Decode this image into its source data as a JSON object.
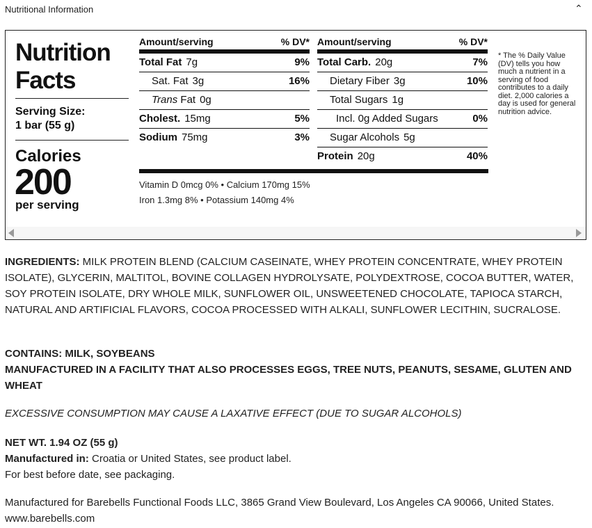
{
  "header": {
    "title": "Nutritional Information",
    "collapse_icon": "chevron-up-icon"
  },
  "label": {
    "title_line1": "Nutrition",
    "title_line2": "Facts",
    "serving_label": "Serving Size:",
    "serving_value": "1 bar (55 g)",
    "calories_label": "Calories",
    "calories_value": "200",
    "per_serving": "per serving",
    "col_header_amount": "Amount/serving",
    "col_header_dv": "% DV*",
    "left_rows": [
      {
        "name": "Total Fat",
        "amount": "7g",
        "dv": "9%",
        "bold": true,
        "indent": 0
      },
      {
        "name": "Sat. Fat",
        "amount": "3g",
        "dv": "16%",
        "bold": false,
        "indent": 1
      },
      {
        "name": "Trans",
        "name_suffix": " Fat",
        "amount": "0g",
        "dv": "",
        "bold": false,
        "indent": 1,
        "italic": true
      },
      {
        "name": "Cholest.",
        "amount": "15mg",
        "dv": "5%",
        "bold": true,
        "indent": 0
      },
      {
        "name": "Sodium",
        "amount": "75mg",
        "dv": "3%",
        "bold": true,
        "indent": 0
      }
    ],
    "right_rows": [
      {
        "name": "Total Carb.",
        "amount": "20g",
        "dv": "7%",
        "bold": true,
        "indent": 0
      },
      {
        "name": "Dietary Fiber",
        "amount": "3g",
        "dv": "10%",
        "bold": false,
        "indent": 1
      },
      {
        "name": "Total Sugars",
        "amount": "1g",
        "dv": "",
        "bold": false,
        "indent": 1
      },
      {
        "name": "Incl. 0g Added Sugars",
        "amount": "",
        "dv": "0%",
        "bold": false,
        "indent": 2
      },
      {
        "name": "Sugar Alcohols",
        "amount": "5g",
        "dv": "",
        "bold": false,
        "indent": 1
      },
      {
        "name": "Protein",
        "amount": "20g",
        "dv": "40%",
        "bold": true,
        "indent": 0
      }
    ],
    "vitamins_line1": "Vitamin D 0mcg 0%  •  Calcium 170mg 15%",
    "vitamins_line2": "Iron 1.3mg 8%  •  Potassium 140mg 4%",
    "footnote": "* The % Daily Value (DV) tells you how much a nutrient in a serving of food contributes to a daily diet. 2,000 calories a day is used for general nutrition advice."
  },
  "details": {
    "ingredients_label": "INGREDIENTS:",
    "ingredients": " MILK PROTEIN BLEND (CALCIUM CASEINATE, WHEY PROTEIN CONCENTRATE, WHEY PROTEIN ISOLATE), GLYCERIN, MALTITOL, BOVINE COLLAGEN HYDROLYSATE, POLYDEXTROSE, COCOA BUTTER, WATER, SOY PROTEIN ISOLATE, DRY WHOLE MILK, SUNFLOWER OIL, UNSWEETENED CHOCOLATE, TAPIOCA STARCH, NATURAL AND ARTIFICIAL FLAVORS, COCOA PROCESSED WITH ALKALI, SUNFLOWER LECITHIN, SUCRALOSE.",
    "contains": "CONTAINS: MILK, SOYBEANS",
    "facility": "MANUFACTURED IN A FACILITY THAT ALSO PROCESSES EGGS, TREE NUTS, PEANUTS, SESAME, GLUTEN AND WHEAT",
    "warning": "EXCESSIVE CONSUMPTION MAY CAUSE A LAXATIVE EFFECT (DUE TO SUGAR ALCOHOLS)",
    "net_wt": "NET WT. 1.94 OZ (55 g)",
    "manufactured_label": "Manufactured in:",
    "manufactured_value": " Croatia or United States, see product label.",
    "best_before": "For best before date, see packaging.",
    "manufacturer": "Manufactured for Barebells Functional Foods LLC, 3865 Grand View Boulevard, Los Angeles CA 90066, United States. www.barebells.com"
  }
}
